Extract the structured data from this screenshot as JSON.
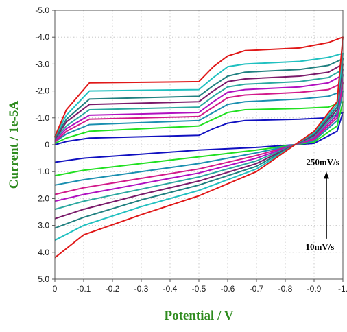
{
  "chart_data": {
    "type": "line",
    "title": "",
    "xlabel": "Potential / V",
    "ylabel": "Current / 1e-5A",
    "xlim": [
      0,
      -1.0
    ],
    "ylim": [
      5.0,
      -5.0
    ],
    "x_ticks": [
      "0",
      "-0.1",
      "-0.2",
      "-0.3",
      "-0.4",
      "-0.5",
      "-0.6",
      "-0.7",
      "-0.8",
      "-0.9",
      "-1."
    ],
    "x_tick_values": [
      0,
      -0.1,
      -0.2,
      -0.3,
      -0.4,
      -0.5,
      -0.6,
      -0.7,
      -0.8,
      -0.9,
      -1.0
    ],
    "y_ticks": [
      "-5.0",
      "-4.0",
      "-3.0",
      "-2.0",
      "-1.0",
      "0",
      "1.0",
      "2.0",
      "3.0",
      "4.0",
      "5.0"
    ],
    "y_tick_values": [
      -5,
      -4,
      -3,
      -2,
      -1,
      0,
      1,
      2,
      3,
      4,
      5
    ],
    "grid": true,
    "legend": "none",
    "annotations": [
      {
        "text": "250mV/s",
        "x": -0.93,
        "y": 0.75
      },
      {
        "text": "10mV/s",
        "x": -0.92,
        "y": 3.9
      }
    ],
    "series": [
      {
        "scan_rate_index": 1,
        "color": "#1010c0",
        "upper": [
          [
            0.0,
            0.0
          ],
          [
            -0.04,
            -0.12
          ],
          [
            -0.12,
            -0.25
          ],
          [
            -0.5,
            -0.35
          ],
          [
            -0.55,
            -0.6
          ],
          [
            -0.6,
            -0.8
          ],
          [
            -0.66,
            -0.9
          ],
          [
            -0.85,
            -0.95
          ],
          [
            -0.95,
            -1.0
          ],
          [
            -1.0,
            -1.2
          ]
        ],
        "lower": [
          [
            -1.0,
            -1.2
          ],
          [
            -0.98,
            -0.5
          ],
          [
            -0.9,
            -0.05
          ],
          [
            -0.7,
            0.1
          ],
          [
            -0.5,
            0.2
          ],
          [
            -0.3,
            0.35
          ],
          [
            -0.1,
            0.5
          ],
          [
            0.0,
            0.65
          ]
        ]
      },
      {
        "scan_rate_index": 2,
        "color": "#20e020",
        "upper": [
          [
            0.0,
            -0.05
          ],
          [
            -0.04,
            -0.25
          ],
          [
            -0.12,
            -0.5
          ],
          [
            -0.5,
            -0.7
          ],
          [
            -0.55,
            -0.95
          ],
          [
            -0.6,
            -1.2
          ],
          [
            -0.66,
            -1.3
          ],
          [
            -0.85,
            -1.35
          ],
          [
            -0.95,
            -1.4
          ],
          [
            -1.0,
            -1.6
          ]
        ],
        "lower": [
          [
            -1.0,
            -1.6
          ],
          [
            -0.98,
            -0.7
          ],
          [
            -0.9,
            -0.1
          ],
          [
            -0.7,
            0.2
          ],
          [
            -0.5,
            0.45
          ],
          [
            -0.3,
            0.7
          ],
          [
            -0.1,
            0.95
          ],
          [
            0.0,
            1.15
          ]
        ]
      },
      {
        "scan_rate_index": 3,
        "color": "#1a8fb0",
        "upper": [
          [
            0.0,
            -0.1
          ],
          [
            -0.04,
            -0.4
          ],
          [
            -0.12,
            -0.75
          ],
          [
            -0.5,
            -0.9
          ],
          [
            -0.55,
            -1.2
          ],
          [
            -0.6,
            -1.5
          ],
          [
            -0.66,
            -1.6
          ],
          [
            -0.85,
            -1.7
          ],
          [
            -0.95,
            -1.8
          ],
          [
            -1.0,
            -2.0
          ]
        ],
        "lower": [
          [
            -1.0,
            -2.0
          ],
          [
            -0.98,
            -0.9
          ],
          [
            -0.9,
            -0.15
          ],
          [
            -0.7,
            0.3
          ],
          [
            -0.5,
            0.7
          ],
          [
            -0.3,
            1.0
          ],
          [
            -0.1,
            1.3
          ],
          [
            0.0,
            1.5
          ]
        ]
      },
      {
        "scan_rate_index": 4,
        "color": "#d21a8a",
        "upper": [
          [
            0.0,
            -0.1
          ],
          [
            -0.04,
            -0.5
          ],
          [
            -0.12,
            -0.95
          ],
          [
            -0.5,
            -1.05
          ],
          [
            -0.55,
            -1.4
          ],
          [
            -0.6,
            -1.75
          ],
          [
            -0.66,
            -1.85
          ],
          [
            -0.85,
            -1.95
          ],
          [
            -0.95,
            -2.05
          ],
          [
            -1.0,
            -2.3
          ]
        ],
        "lower": [
          [
            -1.0,
            -2.3
          ],
          [
            -0.98,
            -1.0
          ],
          [
            -0.9,
            -0.2
          ],
          [
            -0.7,
            0.4
          ],
          [
            -0.5,
            0.9
          ],
          [
            -0.3,
            1.25
          ],
          [
            -0.1,
            1.6
          ],
          [
            0.0,
            1.85
          ]
        ]
      },
      {
        "scan_rate_index": 5,
        "color": "#b010c0",
        "upper": [
          [
            0.0,
            -0.15
          ],
          [
            -0.04,
            -0.6
          ],
          [
            -0.12,
            -1.1
          ],
          [
            -0.5,
            -1.2
          ],
          [
            -0.55,
            -1.6
          ],
          [
            -0.6,
            -1.95
          ],
          [
            -0.66,
            -2.05
          ],
          [
            -0.85,
            -2.15
          ],
          [
            -0.95,
            -2.3
          ],
          [
            -1.0,
            -2.6
          ]
        ],
        "lower": [
          [
            -1.0,
            -2.6
          ],
          [
            -0.98,
            -1.1
          ],
          [
            -0.9,
            -0.25
          ],
          [
            -0.7,
            0.5
          ],
          [
            -0.5,
            1.05
          ],
          [
            -0.3,
            1.45
          ],
          [
            -0.1,
            1.85
          ],
          [
            0.0,
            2.1
          ]
        ]
      },
      {
        "scan_rate_index": 6,
        "color": "#2aa8a0",
        "upper": [
          [
            0.0,
            -0.2
          ],
          [
            -0.04,
            -0.7
          ],
          [
            -0.12,
            -1.3
          ],
          [
            -0.5,
            -1.4
          ],
          [
            -0.55,
            -1.8
          ],
          [
            -0.6,
            -2.15
          ],
          [
            -0.66,
            -2.25
          ],
          [
            -0.85,
            -2.35
          ],
          [
            -0.95,
            -2.5
          ],
          [
            -1.0,
            -2.8
          ]
        ],
        "lower": [
          [
            -1.0,
            -2.8
          ],
          [
            -0.98,
            -1.2
          ],
          [
            -0.9,
            -0.3
          ],
          [
            -0.7,
            0.6
          ],
          [
            -0.5,
            1.2
          ],
          [
            -0.3,
            1.65
          ],
          [
            -0.1,
            2.1
          ],
          [
            0.0,
            2.4
          ]
        ]
      },
      {
        "scan_rate_index": 7,
        "color": "#7a1a6a",
        "upper": [
          [
            0.0,
            -0.2
          ],
          [
            -0.04,
            -0.85
          ],
          [
            -0.12,
            -1.5
          ],
          [
            -0.5,
            -1.6
          ],
          [
            -0.55,
            -2.0
          ],
          [
            -0.6,
            -2.35
          ],
          [
            -0.66,
            -2.45
          ],
          [
            -0.85,
            -2.55
          ],
          [
            -0.95,
            -2.7
          ],
          [
            -1.0,
            -3.0
          ]
        ],
        "lower": [
          [
            -1.0,
            -3.0
          ],
          [
            -0.98,
            -1.3
          ],
          [
            -0.9,
            -0.35
          ],
          [
            -0.7,
            0.7
          ],
          [
            -0.5,
            1.35
          ],
          [
            -0.3,
            1.85
          ],
          [
            -0.1,
            2.4
          ],
          [
            0.0,
            2.75
          ]
        ]
      },
      {
        "scan_rate_index": 8,
        "color": "#208080",
        "upper": [
          [
            0.0,
            -0.25
          ],
          [
            -0.04,
            -0.95
          ],
          [
            -0.12,
            -1.7
          ],
          [
            -0.5,
            -1.8
          ],
          [
            -0.55,
            -2.2
          ],
          [
            -0.6,
            -2.55
          ],
          [
            -0.66,
            -2.7
          ],
          [
            -0.85,
            -2.8
          ],
          [
            -0.95,
            -2.95
          ],
          [
            -1.0,
            -3.2
          ]
        ],
        "lower": [
          [
            -1.0,
            -3.2
          ],
          [
            -0.98,
            -1.4
          ],
          [
            -0.9,
            -0.4
          ],
          [
            -0.7,
            0.8
          ],
          [
            -0.5,
            1.5
          ],
          [
            -0.3,
            2.05
          ],
          [
            -0.1,
            2.7
          ],
          [
            0.0,
            3.1
          ]
        ]
      },
      {
        "scan_rate_index": 9,
        "color": "#20c0c0",
        "upper": [
          [
            0.0,
            -0.3
          ],
          [
            -0.04,
            -1.1
          ],
          [
            -0.12,
            -2.0
          ],
          [
            -0.5,
            -2.05
          ],
          [
            -0.55,
            -2.5
          ],
          [
            -0.6,
            -2.9
          ],
          [
            -0.66,
            -3.0
          ],
          [
            -0.85,
            -3.1
          ],
          [
            -0.95,
            -3.25
          ],
          [
            -1.0,
            -3.4
          ]
        ],
        "lower": [
          [
            -1.0,
            -3.4
          ],
          [
            -0.98,
            -1.5
          ],
          [
            -0.9,
            -0.45
          ],
          [
            -0.7,
            0.9
          ],
          [
            -0.5,
            1.7
          ],
          [
            -0.3,
            2.3
          ],
          [
            -0.1,
            3.0
          ],
          [
            0.0,
            3.55
          ]
        ]
      },
      {
        "scan_rate_index": 10,
        "color": "#e01818",
        "upper": [
          [
            0.0,
            -0.3
          ],
          [
            -0.04,
            -1.3
          ],
          [
            -0.12,
            -2.3
          ],
          [
            -0.5,
            -2.35
          ],
          [
            -0.55,
            -2.9
          ],
          [
            -0.6,
            -3.3
          ],
          [
            -0.66,
            -3.5
          ],
          [
            -0.85,
            -3.6
          ],
          [
            -0.95,
            -3.8
          ],
          [
            -1.0,
            -4.0
          ]
        ],
        "lower": [
          [
            -1.0,
            -4.0
          ],
          [
            -0.98,
            -1.6
          ],
          [
            -0.9,
            -0.5
          ],
          [
            -0.7,
            1.0
          ],
          [
            -0.5,
            1.9
          ],
          [
            -0.3,
            2.6
          ],
          [
            -0.1,
            3.35
          ],
          [
            0.0,
            4.2
          ]
        ]
      }
    ]
  }
}
